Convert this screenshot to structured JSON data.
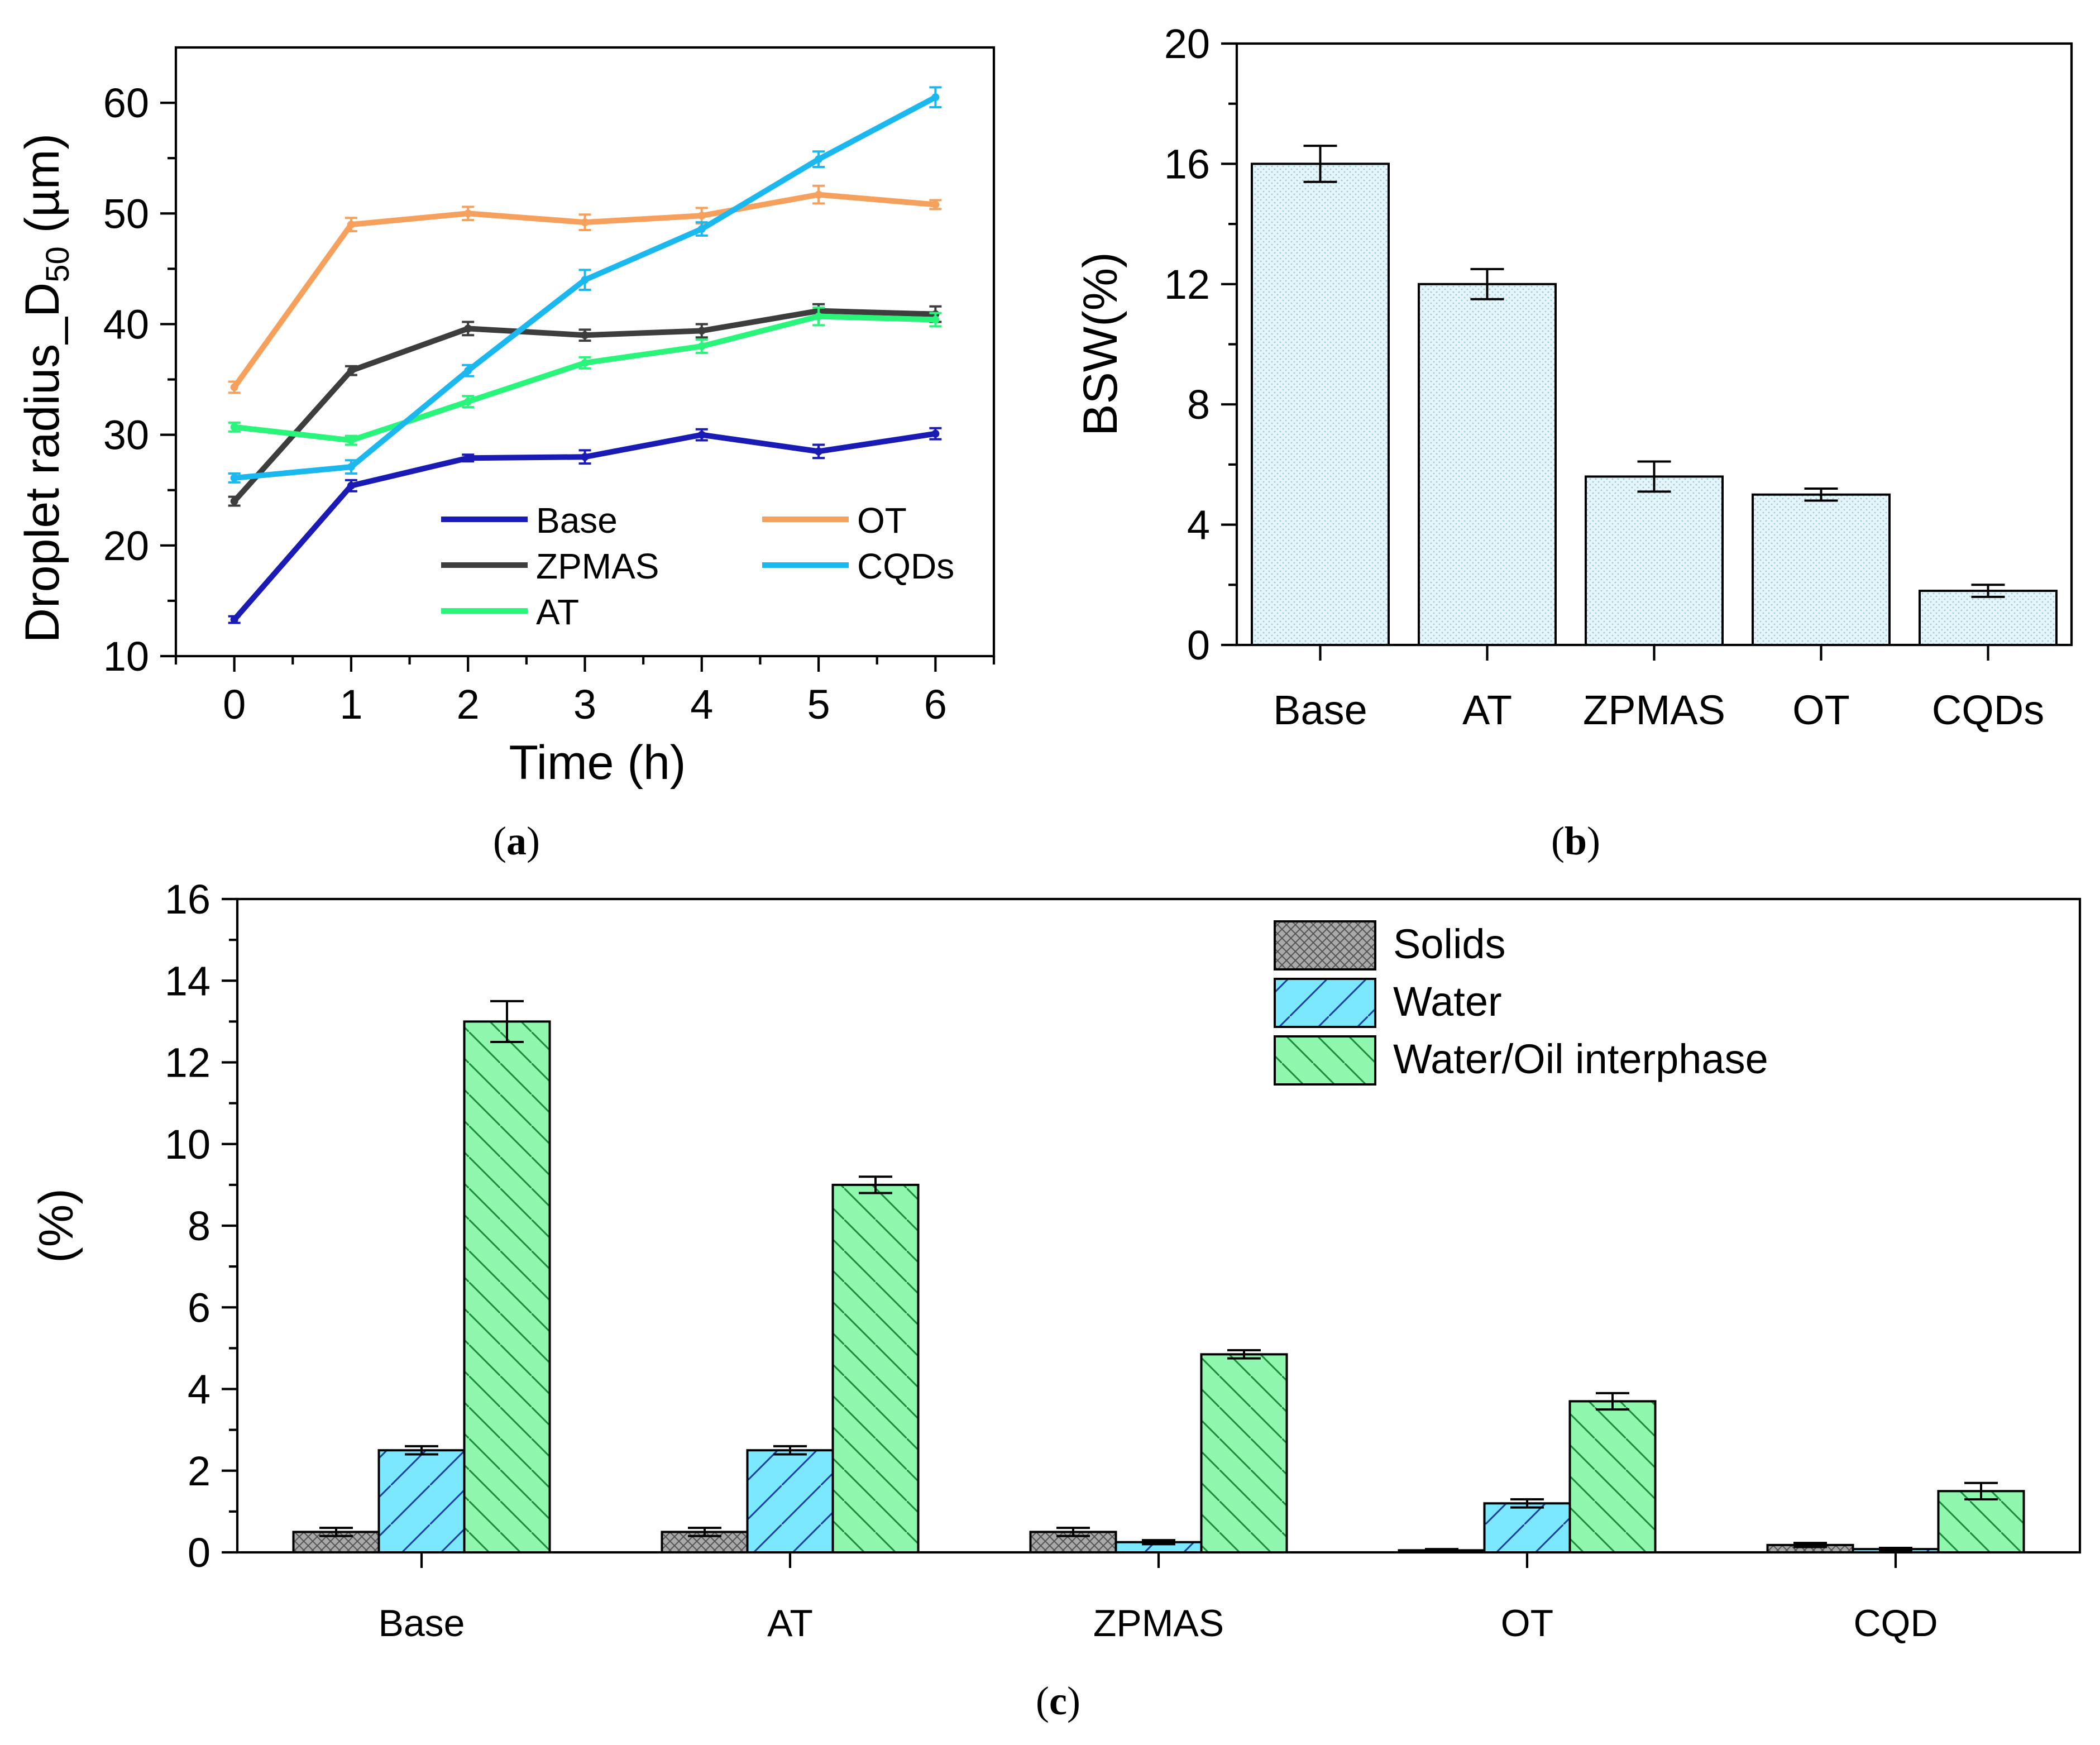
{
  "chart_data": [
    {
      "id": "a",
      "type": "line",
      "caption": "a",
      "xlabel": "Time (h)",
      "ylabel_main": "Droplet radius_D",
      "ylabel_sub": "50",
      "ylabel_unit": " (µm)",
      "xlim": [
        -0.5,
        6.5
      ],
      "ylim": [
        10,
        65
      ],
      "x": [
        0,
        1,
        2,
        3,
        4,
        5,
        6
      ],
      "x_ticks": [
        "0",
        "1",
        "2",
        "3",
        "4",
        "5",
        "6"
      ],
      "y_ticks": [
        "10",
        "20",
        "30",
        "40",
        "50",
        "60"
      ],
      "y_tick_values": [
        10,
        20,
        30,
        40,
        50,
        60
      ],
      "series": [
        {
          "name": "Base",
          "color": "#1a1ab5",
          "values": [
            13.3,
            25.4,
            27.9,
            28.0,
            30.0,
            28.5,
            30.1
          ],
          "errors": [
            0.3,
            0.5,
            0.3,
            0.6,
            0.5,
            0.6,
            0.5
          ]
        },
        {
          "name": "ZPMAS",
          "color": "#3d3d3d",
          "values": [
            24.0,
            35.8,
            39.6,
            39.0,
            39.4,
            41.2,
            40.9
          ],
          "errors": [
            0.4,
            0.4,
            0.6,
            0.5,
            0.6,
            0.6,
            0.7
          ]
        },
        {
          "name": "AT",
          "color": "#29f57a",
          "values": [
            30.7,
            29.5,
            33.0,
            36.5,
            38.0,
            40.7,
            40.4
          ],
          "errors": [
            0.4,
            0.4,
            0.5,
            0.5,
            0.6,
            0.8,
            0.6
          ]
        },
        {
          "name": "OT",
          "color": "#f5a15d",
          "values": [
            34.3,
            49.0,
            50.0,
            49.2,
            49.8,
            51.7,
            50.8
          ],
          "errors": [
            0.5,
            0.6,
            0.6,
            0.7,
            0.7,
            0.8,
            0.4
          ]
        },
        {
          "name": "CQDs",
          "color": "#1ab8ee",
          "values": [
            26.1,
            27.1,
            35.8,
            44.0,
            48.6,
            54.9,
            60.5
          ],
          "errors": [
            0.4,
            0.6,
            0.5,
            0.9,
            0.6,
            0.7,
            0.9
          ]
        }
      ]
    },
    {
      "id": "b",
      "type": "bar",
      "caption": "b",
      "xlabel": "",
      "ylabel": "BSW(%)",
      "ylim": [
        0,
        20
      ],
      "categories": [
        "Base",
        "AT",
        "ZPMAS",
        "OT",
        "CQDs"
      ],
      "values": [
        16.0,
        12.0,
        5.6,
        5.0,
        1.8
      ],
      "errors": [
        0.6,
        0.5,
        0.5,
        0.2,
        0.2
      ],
      "y_ticks": [
        "0",
        "4",
        "8",
        "12",
        "16",
        "20"
      ],
      "y_tick_values": [
        0,
        4,
        8,
        12,
        16,
        20
      ],
      "bar_color": "#e6f5fa"
    },
    {
      "id": "c",
      "type": "bar",
      "caption": "c",
      "xlabel": "",
      "ylabel": "(%)",
      "ylim": [
        0,
        16
      ],
      "categories": [
        "Base",
        "AT",
        "ZPMAS",
        "OT",
        "CQD"
      ],
      "y_ticks": [
        "0",
        "2",
        "4",
        "6",
        "8",
        "10",
        "12",
        "14",
        "16"
      ],
      "y_tick_values": [
        0,
        2,
        4,
        6,
        8,
        10,
        12,
        14,
        16
      ],
      "series": [
        {
          "name": "Solids",
          "color": "#a8a8a8",
          "values": [
            0.5,
            0.5,
            0.5,
            0.05,
            0.18
          ],
          "errors": [
            0.1,
            0.1,
            0.1,
            0.03,
            0.05
          ]
        },
        {
          "name": "Water",
          "color": "#7be8ff",
          "values": [
            2.5,
            2.5,
            0.25,
            1.2,
            0.08
          ],
          "errors": [
            0.1,
            0.1,
            0.05,
            0.1,
            0.03
          ]
        },
        {
          "name": "Water/Oil interphase",
          "color": "#8ff7ad",
          "values": [
            13.0,
            9.0,
            4.85,
            3.7,
            1.5
          ],
          "errors": [
            0.5,
            0.2,
            0.1,
            0.2,
            0.2
          ]
        }
      ]
    }
  ]
}
